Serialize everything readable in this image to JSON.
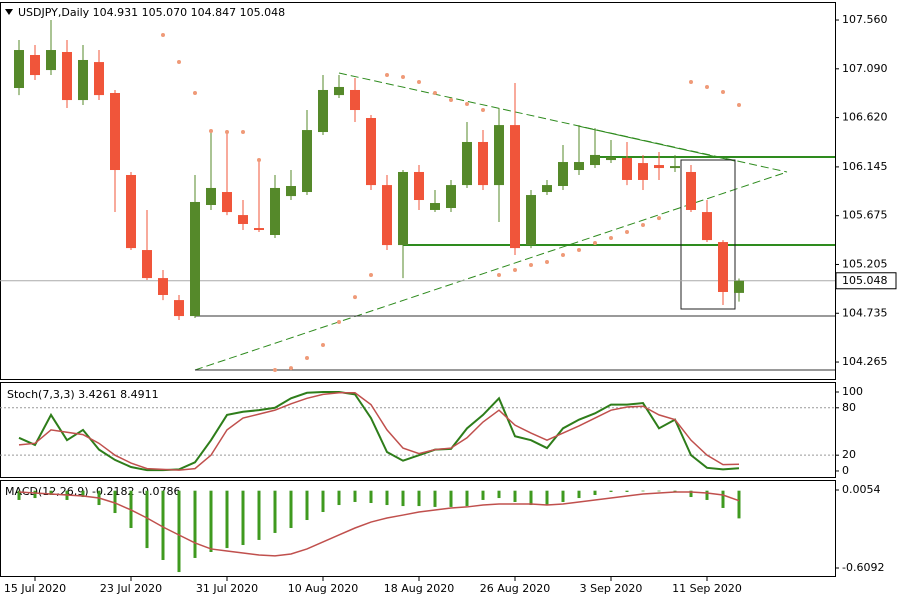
{
  "chart_data": [
    {
      "type": "candlestick",
      "title": "USDJPY,Daily  104.931 105.070 104.847 105.048",
      "categories": [
        null,
        "15 Jul 2020",
        null,
        null,
        null,
        null,
        null,
        "23 Jul 2020",
        null,
        null,
        null,
        null,
        null,
        "31 Jul 2020",
        null,
        null,
        null,
        null,
        null,
        "10 Aug 2020",
        null,
        null,
        null,
        null,
        null,
        "18 Aug 2020",
        null,
        null,
        null,
        null,
        null,
        "26 Aug 2020",
        null,
        null,
        null,
        null,
        null,
        "3 Sep 2020",
        null,
        null,
        null,
        null,
        null,
        "11 Sep 2020",
        null,
        null
      ],
      "open": [
        106.905,
        107.223,
        107.078,
        107.252,
        106.789,
        107.155,
        106.857,
        106.067,
        105.344,
        105.074,
        104.862,
        104.708,
        105.778,
        105.903,
        105.681,
        105.556,
        105.489,
        105.864,
        105.903,
        106.481,
        106.837,
        106.886,
        106.616,
        105.97,
        105.392,
        106.096,
        105.73,
        105.749,
        105.97,
        106.385,
        105.97,
        106.548,
        105.392,
        105.903,
        105.961,
        106.115,
        106.163,
        106.211,
        106.231,
        106.182,
        106.163,
        106.134,
        106.096,
        105.71,
        105.421,
        104.931
      ],
      "high": [
        107.367,
        107.319,
        107.56,
        107.367,
        107.319,
        107.271,
        106.886,
        106.096,
        105.73,
        105.152,
        104.911,
        106.067,
        106.5,
        106.5,
        105.826,
        106.211,
        106.067,
        106.115,
        106.693,
        107.03,
        107.03,
        107.001,
        106.645,
        106.067,
        106.115,
        106.163,
        105.922,
        106.019,
        106.577,
        106.5,
        106.712,
        106.953,
        105.922,
        106.019,
        106.356,
        106.548,
        106.519,
        106.404,
        106.385,
        106.259,
        106.288,
        106.259,
        106.163,
        105.826,
        105.44,
        105.07
      ],
      "low": [
        106.837,
        106.982,
        107.03,
        106.712,
        106.741,
        106.789,
        105.71,
        105.344,
        105.055,
        104.862,
        104.67,
        104.689,
        105.73,
        105.681,
        105.537,
        105.518,
        105.46,
        105.826,
        105.874,
        106.452,
        106.809,
        106.577,
        105.922,
        105.344,
        105.074,
        105.73,
        105.71,
        105.71,
        105.942,
        105.922,
        105.614,
        105.296,
        105.363,
        105.874,
        105.922,
        106.067,
        106.134,
        106.182,
        105.97,
        105.922,
        106.019,
        106.096,
        105.71,
        105.421,
        104.814,
        104.847
      ],
      "close": [
        107.271,
        107.03,
        107.271,
        106.789,
        107.175,
        106.837,
        106.115,
        105.363,
        105.074,
        104.911,
        104.708,
        105.807,
        105.942,
        105.71,
        105.595,
        105.537,
        105.942,
        105.961,
        106.5,
        106.886,
        106.915,
        106.693,
        105.97,
        105.392,
        106.096,
        105.826,
        105.797,
        105.97,
        106.385,
        105.97,
        106.548,
        105.363,
        105.874,
        105.97,
        106.192,
        106.192,
        106.26,
        106.24,
        106.019,
        106.019,
        106.134,
        106.153,
        105.73,
        105.44,
        104.94,
        105.048
      ],
      "sar": [
        null,
        null,
        null,
        null,
        null,
        null,
        null,
        null,
        null,
        107.416,
        107.155,
        106.857,
        106.491,
        106.481,
        106.481,
        106.211,
        104.188,
        104.207,
        104.304,
        104.429,
        104.651,
        104.891,
        105.103,
        107.03,
        107.011,
        106.963,
        106.857,
        106.789,
        106.751,
        106.693,
        105.103,
        105.152,
        105.2,
        105.229,
        105.296,
        105.344,
        105.412,
        105.46,
        105.518,
        105.585,
        105.652,
        null,
        106.963,
        106.915,
        106.866,
        106.741
      ],
      "up_color": "#55892a",
      "down_color": "#f0553a",
      "sar_color": "#ef9a78",
      "current_price": 105.048,
      "ylim": [
        104.092,
        107.724
      ],
      "yticks": [
        {
          "value": 107.56,
          "label": "107.560"
        },
        {
          "value": 107.09,
          "label": "107.090"
        },
        {
          "value": 106.62,
          "label": "106.620"
        },
        106.145,
        {
          "value": 105.675,
          "label": "105.675"
        },
        105.205,
        104.735,
        104.265
      ]
    },
    {
      "type": "line",
      "title": "Stoch(7,3,3) 3.4261 8.4911",
      "series": [
        {
          "color": "#2e7d1a",
          "values": [
            42,
            33,
            71,
            39,
            52,
            27,
            14,
            5,
            1,
            1,
            2,
            11,
            39,
            71,
            75,
            77,
            80,
            92,
            99,
            100,
            100,
            97,
            67,
            24,
            13,
            20,
            27,
            28,
            54,
            71,
            92,
            44,
            39,
            29,
            54,
            65,
            73,
            84,
            84,
            86,
            54,
            65,
            20,
            4,
            2,
            3.4261
          ]
        },
        {
          "color": "#c0504d",
          "values": [
            33,
            35,
            52,
            49,
            46,
            35,
            20,
            10,
            3,
            2,
            1,
            3,
            20,
            52,
            67,
            72,
            77,
            85,
            92,
            97,
            99,
            99,
            84,
            52,
            29,
            22,
            27,
            29,
            42,
            62,
            77,
            58,
            48,
            39,
            48,
            57,
            67,
            77,
            81,
            82,
            71,
            65,
            39,
            20,
            8,
            8.4911
          ]
        }
      ],
      "ylim": [
        -8.9,
        111.4
      ],
      "yticks": [
        100,
        80,
        20,
        0
      ],
      "grid_ticks": [
        80,
        20
      ]
    },
    {
      "type": "bar_line",
      "title": "MACD(12,26,9) -0.2182 -0.0786",
      "color": "#3f9a1f",
      "values": [
        -0.073,
        -0.058,
        -0.034,
        -0.073,
        -0.05,
        -0.113,
        -0.176,
        -0.294,
        -0.452,
        -0.546,
        -0.641,
        -0.53,
        -0.483,
        -0.452,
        -0.428,
        -0.388,
        -0.333,
        -0.294,
        -0.231,
        -0.168,
        -0.113,
        -0.089,
        -0.097,
        -0.113,
        -0.121,
        -0.121,
        -0.128,
        -0.128,
        -0.121,
        -0.073,
        -0.058,
        -0.089,
        -0.113,
        -0.113,
        -0.089,
        -0.058,
        -0.034,
        -0.01,
        -0.01,
        -0.005,
        -0.005,
        -0.01,
        -0.05,
        -0.073,
        -0.136,
        -0.2182
      ],
      "series": [
        {
          "color": "#c0504d",
          "values": [
            -0.01,
            -0.018,
            -0.026,
            -0.034,
            -0.042,
            -0.058,
            -0.097,
            -0.152,
            -0.215,
            -0.286,
            -0.349,
            -0.412,
            -0.459,
            -0.475,
            -0.491,
            -0.507,
            -0.514,
            -0.499,
            -0.459,
            -0.404,
            -0.349,
            -0.294,
            -0.247,
            -0.215,
            -0.192,
            -0.168,
            -0.152,
            -0.136,
            -0.128,
            -0.113,
            -0.105,
            -0.105,
            -0.105,
            -0.113,
            -0.105,
            -0.089,
            -0.073,
            -0.058,
            -0.042,
            -0.026,
            -0.018,
            -0.01,
            -0.01,
            -0.018,
            -0.034,
            -0.0786
          ]
        }
      ],
      "ylim": [
        -0.68,
        0.0763
      ],
      "yticks": [
        0.0054,
        -0.6092
      ]
    }
  ]
}
